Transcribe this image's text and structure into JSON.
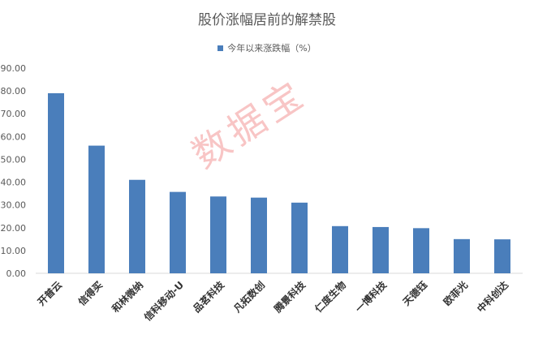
{
  "chart_data": {
    "type": "bar",
    "title": "股价涨幅居前的解禁股",
    "categories": [
      "开普云",
      "信得买",
      "和林微纳",
      "信科移动-U",
      "品茗科技",
      "凡拓数创",
      "腾景科技",
      "仁度生物",
      "一博科技",
      "天德钰",
      "欧菲光",
      "中科创达"
    ],
    "series": [
      {
        "name": "今年以来涨跌幅（%）",
        "values": [
          79.0,
          56.0,
          41.0,
          35.7,
          33.7,
          33.2,
          31.0,
          20.7,
          20.3,
          19.8,
          15.0,
          14.9
        ]
      }
    ],
    "ylim": [
      0,
      90
    ],
    "yticks": [
      "0.00",
      "10.00",
      "20.00",
      "30.00",
      "40.00",
      "50.00",
      "60.00",
      "70.00",
      "80.00",
      "90.00"
    ],
    "grid": false,
    "legend_position": "top",
    "bar_color": "#4a7ebb"
  },
  "watermark": "数据宝"
}
